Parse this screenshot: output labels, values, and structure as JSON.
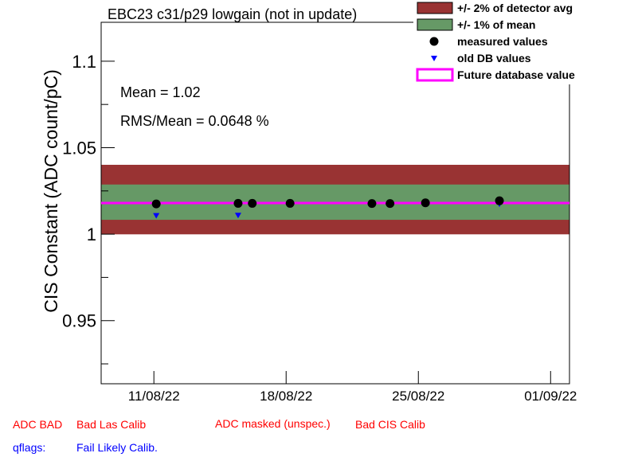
{
  "chart_data": {
    "type": "scatter",
    "title": "EBC23 c31/p29 lowgain (not in update)",
    "ylabel": "CIS Constant (ADC count/pC)",
    "xlabel": "",
    "x_ticks": [
      "11/08/22",
      "18/08/22",
      "25/08/22",
      "01/09/22"
    ],
    "y_ticks": [
      "0.95",
      "1",
      "1.05",
      "1.1"
    ],
    "ylim": [
      0.9135,
      1.1225
    ],
    "xlim": [
      "2022-08-08T05:00",
      "2022-09-02T00:00"
    ],
    "series": [
      {
        "name": "measured values",
        "marker": "circle",
        "color": "#000000",
        "points": [
          {
            "x": "2022-08-11T03:00",
            "y": 1.0175
          },
          {
            "x": "2022-08-15T11:00",
            "y": 1.0178
          },
          {
            "x": "2022-08-16T05:00",
            "y": 1.0178
          },
          {
            "x": "2022-08-18T05:00",
            "y": 1.0178
          },
          {
            "x": "2022-08-22T13:00",
            "y": 1.0177
          },
          {
            "x": "2022-08-23T12:00",
            "y": 1.0177
          },
          {
            "x": "2022-08-25T09:00",
            "y": 1.0181
          },
          {
            "x": "2022-08-29T07:00",
            "y": 1.0193
          }
        ]
      },
      {
        "name": "old DB values",
        "marker": "triangle-down",
        "color": "#0000ff",
        "points": [
          {
            "x": "2022-08-11T03:00",
            "y": 1.0108
          },
          {
            "x": "2022-08-15T11:00",
            "y": 1.011
          },
          {
            "x": "2022-08-29T07:00",
            "y": 1.0175
          }
        ]
      }
    ],
    "bands": [
      {
        "name": "+/- 2% of detector avg",
        "color": "#993333",
        "range": [
          0.9999,
          1.0401
        ]
      },
      {
        "name": "+/- 1% of mean",
        "color": "#669966",
        "range": [
          1.0083,
          1.0287
        ]
      }
    ],
    "future_value": {
      "name": "Future database value",
      "color": "#ff00ff",
      "y": 1.018
    },
    "stats": {
      "mean": "Mean = 1.02",
      "rms": "RMS/Mean = 0.0648 %"
    },
    "legend": {
      "position": "top-right",
      "entries": [
        {
          "label": "+/- 2% of detector avg",
          "symbol": "box",
          "color": "#993333"
        },
        {
          "label": "+/- 1% of mean",
          "symbol": "box",
          "color": "#669966"
        },
        {
          "label": "measured values",
          "symbol": "circle",
          "color": "#000000"
        },
        {
          "label": "old DB values",
          "symbol": "triangle-down",
          "color": "#0000ff"
        },
        {
          "label": "Future database value",
          "symbol": "line",
          "color": "#ff00ff"
        }
      ]
    },
    "grid": false
  },
  "flags": {
    "adc_bad": "ADC BAD",
    "bad_las_calib": "Bad Las Calib",
    "adc_masked": "ADC masked (unspec.)",
    "bad_cis_calib": "Bad CIS Calib",
    "qflags": "qflags:",
    "fail_likely_calib": "Fail Likely Calib."
  },
  "colors": {
    "flag_red": "#ff0000",
    "flag_blue": "#0000ff"
  }
}
